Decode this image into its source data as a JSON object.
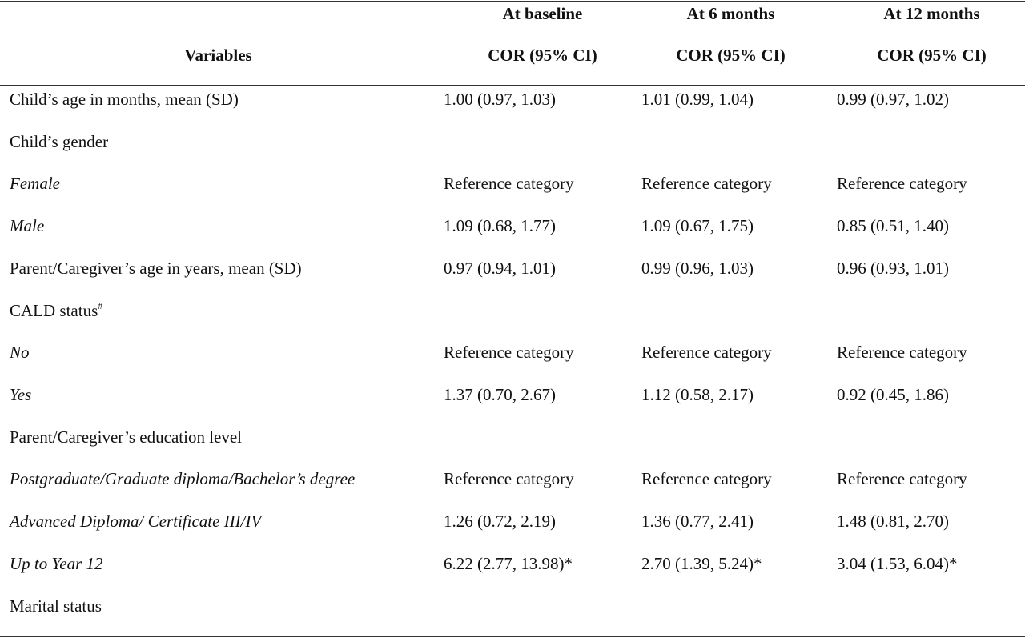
{
  "header": {
    "variables": "Variables",
    "columns": [
      {
        "line1": "At baseline",
        "line2": "COR (95% CI)"
      },
      {
        "line1": "At 6 months",
        "line2": "COR (95% CI)"
      },
      {
        "line1": "At 12 months",
        "line2": "COR (95% CI)"
      }
    ]
  },
  "rows": [
    {
      "label": "Child’s age in months, mean (SD)",
      "values": [
        "1.00 (0.97, 1.03)",
        "1.01 (0.99, 1.04)",
        "0.99 (0.97, 1.02)"
      ]
    },
    {
      "label": "Child’s gender",
      "values": [
        "",
        "",
        ""
      ]
    },
    {
      "label": "Female",
      "values": [
        "Reference category",
        "Reference category",
        "Reference category"
      ]
    },
    {
      "label": "Male",
      "values": [
        "1.09 (0.68, 1.77)",
        "1.09 (0.67, 1.75)",
        "0.85 (0.51, 1.40)"
      ]
    },
    {
      "label": "Parent/Caregiver’s age in years, mean (SD)",
      "values": [
        "0.97 (0.94, 1.01)",
        "0.99 (0.96, 1.03)",
        "0.96 (0.93, 1.01)"
      ]
    },
    {
      "label": "CALD status",
      "sup": "#",
      "values": [
        "",
        "",
        ""
      ]
    },
    {
      "label": "No",
      "values": [
        "Reference category",
        "Reference category",
        "Reference category"
      ]
    },
    {
      "label": "Yes",
      "values": [
        "1.37 (0.70, 2.67)",
        "1.12 (0.58, 2.17)",
        "0.92 (0.45, 1.86)"
      ]
    },
    {
      "label": "Parent/Caregiver’s education level",
      "values": [
        "",
        "",
        ""
      ]
    },
    {
      "label": "Postgraduate/Graduate diploma/Bachelor’s degree",
      "values": [
        "Reference category",
        "Reference category",
        "Reference category"
      ]
    },
    {
      "label": "Advanced Diploma/ Certificate III/IV",
      "values": [
        "1.26 (0.72, 2.19)",
        "1.36 (0.77, 2.41)",
        "1.48 (0.81, 2.70)"
      ]
    },
    {
      "label": "Up to Year 12",
      "values": [
        "6.22 (2.77, 13.98)*",
        "2.70 (1.39, 5.24)*",
        "3.04 (1.53, 6.04)*"
      ]
    },
    {
      "label": "Marital status",
      "values": [
        "",
        "",
        ""
      ]
    }
  ]
}
